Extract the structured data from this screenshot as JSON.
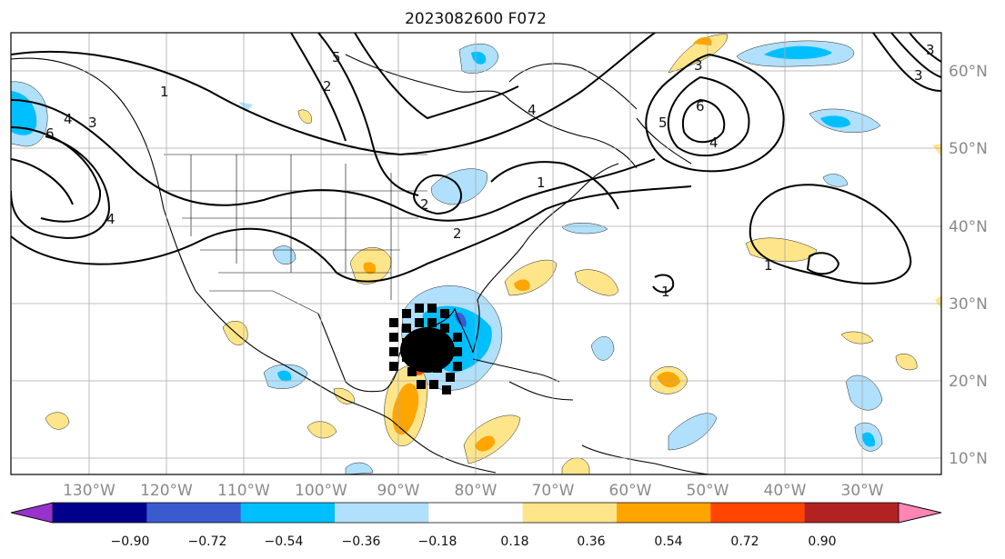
{
  "title": "2023082600 F072",
  "lon_ticks": [
    "130°W",
    "120°W",
    "110°W",
    "100°W",
    "90°W",
    "80°W",
    "70°W",
    "60°W",
    "50°W",
    "40°W",
    "30°W"
  ],
  "lat_ticks": [
    "60°N",
    "50°N",
    "40°N",
    "30°N",
    "20°N",
    "10°N"
  ],
  "map_extent": {
    "lon": [
      -140,
      -20
    ],
    "lat": [
      8,
      65
    ]
  },
  "colorbar": {
    "ticks": [
      "−0.90",
      "−0.72",
      "−0.54",
      "−0.36",
      "−0.18",
      "0.18",
      "0.36",
      "0.54",
      "0.72",
      "0.90"
    ],
    "colors": [
      "#9932cc",
      "#00008b",
      "#3a5bd0",
      "#00bfff",
      "#b0e0fb",
      "#ffffff",
      "#ffe58a",
      "#ffa500",
      "#ff4500",
      "#b22222",
      "#ff85b5"
    ],
    "extend": "both"
  },
  "contour_labels": [
    "1",
    "4",
    "6",
    "3",
    "4",
    "5",
    "4",
    "6",
    "5",
    "2",
    "3",
    "3",
    "1",
    "4",
    "1",
    "2",
    "2",
    "3",
    "1"
  ],
  "legend_fill_colors": {
    "land_outline": "#000000",
    "contour": "#000000",
    "grid": "#aaaaaa"
  }
}
